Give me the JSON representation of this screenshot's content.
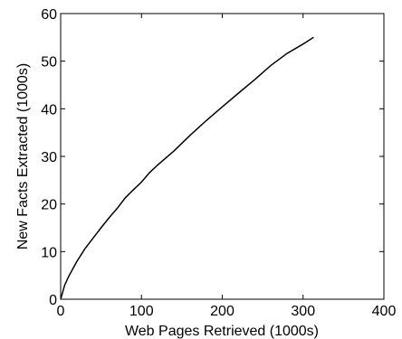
{
  "chart_data": {
    "type": "line",
    "title": "",
    "xlabel": "Web Pages Retrieved (1000s)",
    "ylabel": "New Facts Extracted (1000s)",
    "xlim": [
      0,
      400
    ],
    "ylim": [
      0,
      60
    ],
    "x_ticks": [
      0,
      100,
      200,
      300,
      400
    ],
    "y_ticks": [
      0,
      10,
      20,
      30,
      40,
      50,
      60
    ],
    "x_tick_labels": [
      "0",
      "100",
      "200",
      "300",
      "400"
    ],
    "y_tick_labels": [
      "0",
      "10",
      "20",
      "30",
      "40",
      "50",
      "60"
    ],
    "grid": false,
    "line_color": "#000000",
    "series": [
      {
        "x": [
          0,
          5,
          10,
          20,
          30,
          40,
          50,
          60,
          70,
          80,
          90,
          100,
          110,
          120,
          140,
          160,
          180,
          200,
          220,
          240,
          260,
          280,
          300,
          313
        ],
        "y": [
          0,
          3,
          4.8,
          7.9,
          10.6,
          12.8,
          15,
          17.1,
          19.1,
          21.3,
          23,
          24.6,
          26.6,
          28.2,
          31.1,
          34.4,
          37.5,
          40.4,
          43.3,
          46.1,
          49.1,
          51.6,
          53.6,
          55
        ]
      }
    ]
  }
}
